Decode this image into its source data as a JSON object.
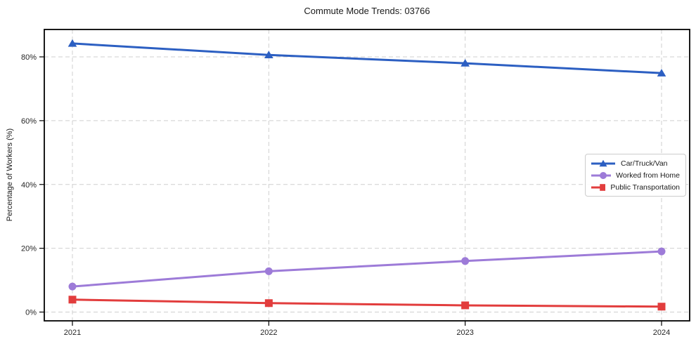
{
  "chart_data": {
    "type": "line",
    "title": "Commute Mode Trends: 03766",
    "xlabel": "",
    "ylabel": "Percentage of Workers (%)",
    "x": [
      2021,
      2022,
      2023,
      2024
    ],
    "series": [
      {
        "name": "Car/Truck/Van",
        "values": [
          84.2,
          80.6,
          78.0,
          74.9
        ],
        "color": "#2c5fc2",
        "marker": "triangle"
      },
      {
        "name": "Worked from Home",
        "values": [
          8.0,
          12.8,
          16.0,
          19.0
        ],
        "color": "#9d7bd8",
        "marker": "circle"
      },
      {
        "name": "Public Transportation",
        "values": [
          3.9,
          2.8,
          2.1,
          1.7
        ],
        "color": "#e23d3d",
        "marker": "square"
      }
    ],
    "yticks": [
      0,
      20,
      40,
      60,
      80
    ],
    "ytick_labels": [
      "0%",
      "20%",
      "40%",
      "60%",
      "80%"
    ],
    "ylim": [
      0,
      88.6
    ],
    "grid": true,
    "grid_color": "#cfcfcf",
    "axis_color": "#000000",
    "tick_text_color": "#262626",
    "legend_position": "right"
  }
}
